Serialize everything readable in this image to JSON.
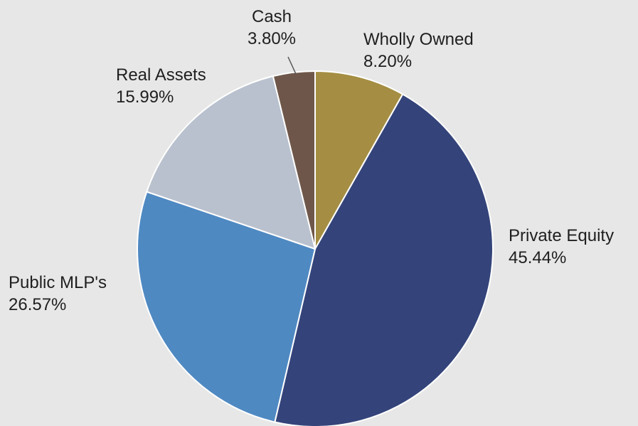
{
  "chart_data": {
    "type": "pie",
    "slices": [
      {
        "label": "Wholly Owned",
        "value": 8.2,
        "value_label": "8.20%",
        "color": "#a58e43"
      },
      {
        "label": "Private Equity",
        "value": 45.44,
        "value_label": "45.44%",
        "color": "#34447a"
      },
      {
        "label": "Public MLP's",
        "value": 26.57,
        "value_label": "26.57%",
        "color": "#4f89c2"
      },
      {
        "label": "Real Assets",
        "value": 15.99,
        "value_label": "15.99%",
        "color": "#b9c1ce"
      },
      {
        "label": "Cash",
        "value": 3.8,
        "value_label": "3.80%",
        "color": "#6e574a"
      }
    ],
    "start": "12 o'clock",
    "direction": "clockwise",
    "background": "#e7e7e7",
    "legend": "none"
  }
}
